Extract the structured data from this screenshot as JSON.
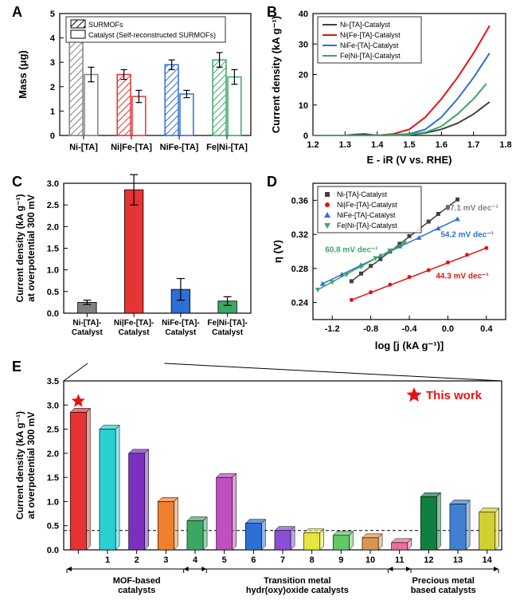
{
  "panelA": {
    "type": "bar",
    "categories": [
      "Ni-[TA]",
      "Ni|Fe-[TA]",
      "NiFe-[TA]",
      "Fe|Ni-[TA]"
    ],
    "series": [
      {
        "label": "SURMOFs",
        "hatch": true,
        "values": [
          4.2,
          2.5,
          2.9,
          3.1
        ],
        "errors": [
          0.35,
          0.2,
          0.2,
          0.3
        ],
        "colors": [
          "#808080",
          "#e63333",
          "#2d6fd4",
          "#3aa862"
        ]
      },
      {
        "label": "Catalyst (Self-reconstructed SURMOFs)",
        "hatch": false,
        "values": [
          2.5,
          1.6,
          1.7,
          2.4
        ],
        "errors": [
          0.3,
          0.25,
          0.15,
          0.3
        ],
        "colors": [
          "#808080",
          "#e63333",
          "#2d6fd4",
          "#3aa862"
        ]
      }
    ],
    "ylabel": "Mass (μg)",
    "ylim": [
      0,
      5
    ],
    "ytick_step": 1,
    "label_fontsize": 13,
    "tick_fontsize": 11,
    "background_color": "#ffffff"
  },
  "panelB": {
    "type": "line",
    "xlabel": "E - iR (V vs. RHE)",
    "ylabel": "Current density (kA g⁻¹)",
    "xlim": [
      1.2,
      1.8
    ],
    "xtick_step": 0.1,
    "ylim": [
      0,
      40
    ],
    "ytick_step": 10,
    "series": [
      {
        "label": "Ni-[TA]-Catalyst",
        "color": "#404040",
        "points": [
          [
            1.2,
            0
          ],
          [
            1.3,
            0
          ],
          [
            1.33,
            0.3
          ],
          [
            1.36,
            0.5
          ],
          [
            1.4,
            0
          ],
          [
            1.5,
            0.2
          ],
          [
            1.55,
            0.8
          ],
          [
            1.6,
            2
          ],
          [
            1.65,
            4
          ],
          [
            1.7,
            7
          ],
          [
            1.75,
            11
          ]
        ]
      },
      {
        "label": "Ni|Fe-[TA]-Catalyst",
        "color": "#e61212",
        "points": [
          [
            1.2,
            0
          ],
          [
            1.4,
            0
          ],
          [
            1.45,
            0.5
          ],
          [
            1.5,
            2
          ],
          [
            1.55,
            6
          ],
          [
            1.6,
            12
          ],
          [
            1.65,
            19
          ],
          [
            1.7,
            27
          ],
          [
            1.75,
            36
          ]
        ]
      },
      {
        "label": "NiFe-[TA]-Catalyst",
        "color": "#2d6fd4",
        "points": [
          [
            1.2,
            0
          ],
          [
            1.4,
            0
          ],
          [
            1.5,
            0.5
          ],
          [
            1.55,
            2
          ],
          [
            1.6,
            6
          ],
          [
            1.65,
            12
          ],
          [
            1.7,
            19
          ],
          [
            1.75,
            27
          ]
        ]
      },
      {
        "label": "Fe|Ni-[TA]-Catalyst",
        "color": "#3aa862",
        "points": [
          [
            1.2,
            0
          ],
          [
            1.4,
            0
          ],
          [
            1.5,
            0.3
          ],
          [
            1.55,
            1
          ],
          [
            1.6,
            3
          ],
          [
            1.65,
            7
          ],
          [
            1.7,
            12
          ],
          [
            1.74,
            17
          ]
        ]
      }
    ],
    "label_fontsize": 13,
    "tick_fontsize": 11,
    "line_width": 2
  },
  "panelC": {
    "type": "bar",
    "categories": [
      "Ni-[TA]-\nCatalyst",
      "Ni|Fe-[TA]-\nCatalyst",
      "NiFe-[TA]-\nCatalyst",
      "Fe|Ni-[TA]-\nCatalyst"
    ],
    "values": [
      0.25,
      2.85,
      0.55,
      0.28
    ],
    "errors": [
      0.05,
      0.35,
      0.25,
      0.1
    ],
    "colors": [
      "#808080",
      "#e63333",
      "#2d6fd4",
      "#3aa862"
    ],
    "ylabel": "Current density (kA g⁻¹)\nat overpotential 300 mV",
    "ylim": [
      0,
      3
    ],
    "ytick_step": 0.5,
    "label_fontsize": 13,
    "tick_fontsize": 11
  },
  "panelD": {
    "type": "scatter",
    "xlabel": "log [j (kA g⁻¹)]",
    "ylabel": "η (V)",
    "xlim": [
      -1.4,
      0.6
    ],
    "xtick_step": 0.4,
    "ylim": [
      0.22,
      0.38
    ],
    "ytick_step": 0.04,
    "series": [
      {
        "label": "Ni-[TA]-Catalyst",
        "color": "#404040",
        "marker": "square",
        "slope_label": "87.1 mV dec⁻¹",
        "slope_color": "#808080",
        "points": [
          [
            -1.0,
            0.265
          ],
          [
            -0.9,
            0.274
          ],
          [
            -0.8,
            0.283
          ],
          [
            -0.7,
            0.291
          ],
          [
            -0.6,
            0.3
          ],
          [
            -0.5,
            0.309
          ],
          [
            -0.4,
            0.318
          ],
          [
            -0.3,
            0.326
          ],
          [
            -0.2,
            0.335
          ],
          [
            -0.1,
            0.344
          ],
          [
            0.0,
            0.352
          ],
          [
            0.1,
            0.361
          ]
        ]
      },
      {
        "label": "Ni|Fe-[TA]-Catalyst",
        "color": "#e61212",
        "marker": "circle",
        "slope_label": "44.3 mV dec⁻¹",
        "slope_color": "#e61212",
        "points": [
          [
            -1.0,
            0.243
          ],
          [
            -0.8,
            0.252
          ],
          [
            -0.6,
            0.261
          ],
          [
            -0.4,
            0.27
          ],
          [
            -0.2,
            0.278
          ],
          [
            0.0,
            0.287
          ],
          [
            0.2,
            0.296
          ],
          [
            0.4,
            0.304
          ]
        ]
      },
      {
        "label": "NiFe-[TA]-Catalyst",
        "color": "#2d6fd4",
        "marker": "triangle",
        "slope_label": "54.2 mV dec⁻¹",
        "slope_color": "#2d6fd4",
        "points": [
          [
            -1.3,
            0.262
          ],
          [
            -1.1,
            0.273
          ],
          [
            -0.9,
            0.284
          ],
          [
            -0.7,
            0.295
          ],
          [
            -0.5,
            0.306
          ],
          [
            -0.3,
            0.316
          ],
          [
            -0.1,
            0.327
          ],
          [
            0.1,
            0.338
          ]
        ]
      },
      {
        "label": "Fe|Ni-[TA]-Catalyst",
        "color": "#3aa862",
        "marker": "triangle-down",
        "slope_label": "60.8 mV dec⁻¹",
        "slope_color": "#3aa862",
        "points": [
          [
            -1.35,
            0.255
          ],
          [
            -1.2,
            0.264
          ],
          [
            -1.05,
            0.273
          ],
          [
            -0.9,
            0.282
          ],
          [
            -0.75,
            0.292
          ],
          [
            -0.6,
            0.301
          ],
          [
            -0.45,
            0.31
          ]
        ]
      }
    ],
    "marker_size": 5,
    "label_fontsize": 13,
    "tick_fontsize": 11
  },
  "panelE": {
    "type": "bar",
    "categories": [
      "★",
      "1",
      "2",
      "3",
      "4",
      "5",
      "6",
      "7",
      "8",
      "9",
      "10",
      "11",
      "12",
      "13",
      "14"
    ],
    "values": [
      2.85,
      2.5,
      2.0,
      1.0,
      0.6,
      1.5,
      0.55,
      0.4,
      0.35,
      0.3,
      0.25,
      0.15,
      1.1,
      0.95,
      0.78
    ],
    "colors": [
      "#e63333",
      "#29d0d0",
      "#7b2fbf",
      "#f08030",
      "#3aa862",
      "#c04fc0",
      "#2d6fd4",
      "#8a4fd4",
      "#e6e640",
      "#64c864",
      "#d89650",
      "#e870a0",
      "#108040",
      "#4080d0",
      "#d0d030"
    ],
    "ylabel": "Current density (kA g⁻¹)\nat overpotential 300 mV",
    "ylim": [
      0,
      3.5
    ],
    "ytick_step": 0.5,
    "groups": [
      {
        "label": "MOF-based\ncatalysts",
        "range": [
          0,
          4
        ]
      },
      {
        "label": "Transition metal\nhydr(oxy)oxide catalysts",
        "range": [
          4,
          11
        ]
      },
      {
        "label": "Precious metal\nbased catalysts",
        "range": [
          11,
          14
        ]
      }
    ],
    "star_label": "This work",
    "star_color": "#e61212",
    "baseline_y": 0.4,
    "label_fontsize": 13,
    "tick_fontsize": 11
  }
}
